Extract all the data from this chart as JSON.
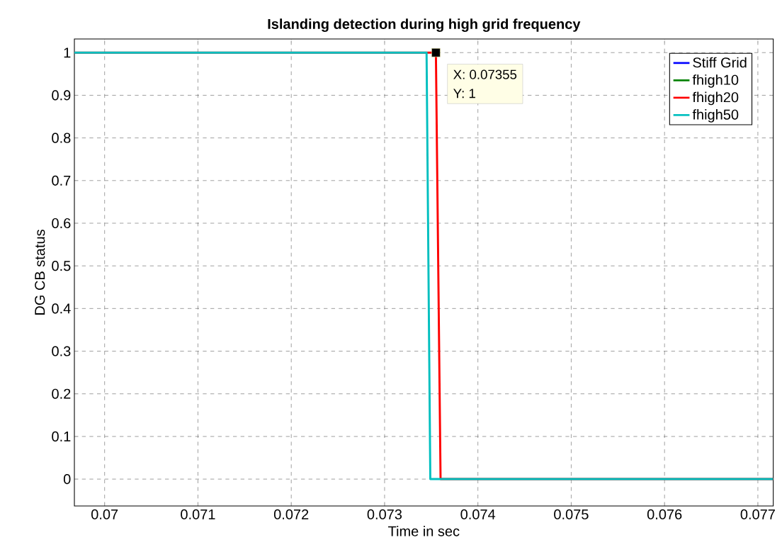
{
  "chart_data": {
    "type": "line",
    "title": "Islanding detection during high grid frequency",
    "xlabel": "Time in sec",
    "ylabel": "DG CB status",
    "series": [
      {
        "name": "Stiff Grid",
        "color": "#0000ff"
      },
      {
        "name": "fhigh10",
        "color": "#008000"
      },
      {
        "name": "fhigh20",
        "color": "#ff0000",
        "x": [
          0.069676,
          0.07355,
          0.0736,
          0.077165
        ],
        "values": [
          1,
          1,
          0,
          0
        ]
      },
      {
        "name": "fhigh50",
        "color": "#00bfbf",
        "x": [
          0.069676,
          0.07345,
          0.07349,
          0.077165
        ],
        "values": [
          1,
          1,
          0,
          0
        ]
      }
    ],
    "annotations": [
      {
        "text": "X: 0.07355",
        "x": 0.07355,
        "y": 1
      },
      "Y: 1"
    ],
    "xlim": [
      0.069676,
      0.077165
    ],
    "ylim": [
      -0.063,
      1.032
    ],
    "xticks": [
      0.07,
      0.071,
      0.072,
      0.073,
      0.074,
      0.075,
      0.076,
      0.077
    ],
    "yticks": [
      0,
      0.1,
      0.2,
      0.3,
      0.4,
      0.5,
      0.6,
      0.7,
      0.8,
      0.9,
      1
    ],
    "grid": true,
    "legend": "top right",
    "line_style": "solid"
  }
}
